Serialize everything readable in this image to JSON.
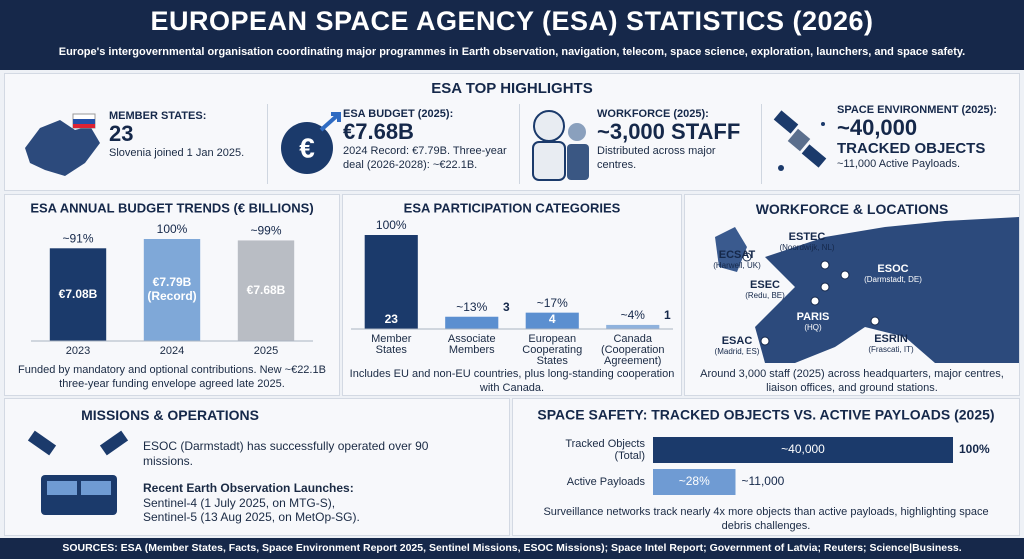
{
  "header": {
    "title": "EUROPEAN SPACE AGENCY (ESA) STATISTICS (2026)",
    "subtitle": "Europe's intergovernmental organisation coordinating major programmes in Earth observation, navigation, telecom, space science, exploration, launchers, and space safety."
  },
  "highlights": {
    "title": "ESA TOP HIGHLIGHTS",
    "items": [
      {
        "label": "MEMBER STATES:",
        "value": "23",
        "note": "Slovenia joined 1 Jan 2025."
      },
      {
        "label": "ESA BUDGET (2025):",
        "value": "€7.68B",
        "note": "2024 Record: €7.79B. Three-year deal (2026-2028): ~€22.1B."
      },
      {
        "label": "WORKFORCE (2025):",
        "value": "~3,000 STAFF",
        "note": "Distributed across major centres."
      },
      {
        "label": "SPACE ENVIRONMENT (2025):",
        "value": "~40,000",
        "value_2": "TRACKED OBJECTS",
        "note": "~11,000 Active Payloads."
      }
    ]
  },
  "chart_data": [
    {
      "type": "bar",
      "title": "ESA ANNUAL BUDGET TRENDS (€ BILLIONS)",
      "categories": [
        "2023",
        "2024",
        "2025"
      ],
      "values": [
        7.08,
        7.79,
        7.68
      ],
      "value_labels": [
        "€7.08B",
        "€7.79B (Record)",
        "€7.68B"
      ],
      "share_labels": [
        "~91%",
        "100%",
        "~99%"
      ],
      "colors": [
        "#1b3a6b",
        "#7fa8d8",
        "#b9bdc4"
      ],
      "note": "Funded by mandatory and optional contributions. New ~€22.1B three-year funding envelope agreed late 2025."
    },
    {
      "type": "bar",
      "title": "ESA PARTICIPATION CATEGORIES",
      "categories": [
        "Member States",
        "Associate Members",
        "European Cooperating States",
        "Canada (Cooperation Agreement)"
      ],
      "values": [
        23,
        3,
        4,
        1
      ],
      "share_labels": [
        "100%",
        "~13%",
        "~17%",
        "~4%"
      ],
      "colors": [
        "#1b3a6b",
        "#5b8fd0",
        "#5b8fd0",
        "#8fb2dd"
      ],
      "note": "Includes EU and non-EU countries, plus long-standing cooperation with Canada."
    },
    {
      "type": "hbar",
      "title": "SPACE SAFETY: TRACKED OBJECTS VS. ACTIVE PAYLOADS (2025)",
      "categories": [
        "Tracked Objects (Total)",
        "Active Payloads"
      ],
      "values": [
        40000,
        11000
      ],
      "value_labels": [
        "~40,000",
        "~11,000"
      ],
      "share_labels": [
        "100%",
        "~28%"
      ],
      "colors": [
        "#1b3a6b",
        "#6f9bd3"
      ],
      "note": "Surveillance networks track nearly 4x more objects than active payloads, highlighting space debris challenges."
    }
  ],
  "workforce": {
    "title": "WORKFORCE & LOCATIONS",
    "locations": [
      {
        "name": "ECSAT",
        "place": "(Harwell, UK)"
      },
      {
        "name": "ESTEC",
        "place": "(Noordwijk, NL)"
      },
      {
        "name": "ESEC",
        "place": "(Redu, BE)"
      },
      {
        "name": "ESOC",
        "place": "(Darmstadt, DE)"
      },
      {
        "name": "PARIS",
        "place": "(HQ)"
      },
      {
        "name": "ESAC",
        "place": "(Madrid, ES)"
      },
      {
        "name": "ESRIN",
        "place": "(Frascati, IT)"
      }
    ],
    "note": "Around 3,000 staff (2025) across headquarters, major centres, liaison offices, and ground stations."
  },
  "missions": {
    "title": "MISSIONS & OPERATIONS",
    "text_1": "ESOC (Darmstadt) has successfully operated over 90 missions.",
    "heading_2": "Recent Earth Observation Launches:",
    "text_2": "Sentinel-4 (1 July 2025, on MTG-S),",
    "text_3": "Sentinel-5 (13 Aug 2025, on MetOp-SG)."
  },
  "sources": "SOURCES: ESA (Member States, Facts, Space Environment Report 2025, Sentinel Missions, ESOC Missions); Space Intel Report; Government of Latvia; Reuters; Science|Business."
}
